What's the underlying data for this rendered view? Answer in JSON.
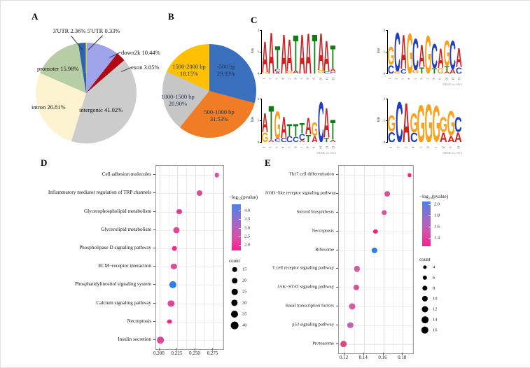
{
  "panel_labels": {
    "a": "A",
    "b": "B",
    "c": "C",
    "d": "D",
    "e": "E"
  },
  "chart_data": [
    {
      "panel": "A",
      "type": "pie",
      "title": "",
      "categories": [
        "3'UTR",
        "5'UTR",
        "down2k",
        "exon",
        "intergenic",
        "intron",
        "promoter"
      ],
      "values": [
        2.36,
        0.33,
        10.44,
        3.05,
        41.02,
        26.81,
        15.98
      ],
      "labels": [
        "3'UTR 2.36%",
        "5'UTR 0.33%",
        "down2k 10.44%",
        "exon 3.05%",
        "intergenic 41.02%",
        "intron 26.81%",
        "promoter 15.98%"
      ],
      "colors": [
        "#2e64ad",
        "#ffdf00",
        "#9fa3ea",
        "#b00712",
        "#cccccc",
        "#fdf3d0",
        "#b7cda5"
      ],
      "start_angle": -9
    },
    {
      "panel": "B",
      "type": "pie",
      "title": "",
      "categories": [
        "-500 bp",
        "500-1000 bp",
        "1000-1500 bp",
        "1500-2000 bp"
      ],
      "values": [
        29.03,
        31.53,
        20.9,
        18.15
      ],
      "pct_labels": [
        "29.03%",
        "31.53%",
        "20.90%",
        "18.15%"
      ],
      "colors": [
        "#3a6fbd",
        "#f07d26",
        "#c6c6c6",
        "#ffc004"
      ],
      "start_angle": 0
    },
    {
      "panel": "D",
      "type": "scatter",
      "title": "",
      "categories": [
        "Cell adhesion molecules",
        "Inflammatory mediator regulation of TRP channels",
        "Glycerophospholipid metabolism",
        "Glycerolipid metabolism",
        "Phospholipase D signaling pathway",
        "ECM−receptor interaction",
        "Phosphatidylinositol signaling system",
        "Calcium signaling pathway",
        "Necroptosis",
        "Insulin secretion"
      ],
      "x": [
        0.28,
        0.256,
        0.228,
        0.224,
        0.221,
        0.22,
        0.219,
        0.216,
        0.214,
        0.201
      ],
      "count": [
        15,
        22,
        22,
        28,
        16,
        24,
        36,
        30,
        16,
        32
      ],
      "neglog10_pvalue": [
        2.4,
        2.3,
        2.1,
        2.2,
        2.0,
        2.3,
        4.2,
        2.2,
        2.0,
        2.15
      ],
      "colors": [
        "#d4539f",
        "#dd4899",
        "#e83b92",
        "#dd4899",
        "#f32b8c",
        "#d8509d",
        "#2f7fe8",
        "#dd4899",
        "#f32b8c",
        "#dd459a"
      ],
      "xlim": [
        0.1952,
        0.2892
      ],
      "xticks": [
        0.2,
        0.225,
        0.25,
        0.275
      ],
      "xtick_labels": [
        "0.200",
        "0.225",
        "0.250",
        "0.275"
      ],
      "grid": true,
      "legend": {
        "color_title": "−log₁₀(pvalue)",
        "color_ticks": [
          "4.0",
          "3.5",
          "3.0",
          "2.5",
          "2.0"
        ],
        "count_title": "count",
        "count_sizes": [
          15,
          20,
          25,
          30,
          35,
          40
        ]
      }
    },
    {
      "panel": "E",
      "type": "scatter",
      "title": "",
      "categories": [
        "Th17 cell differentiation",
        "NOD−like receptor signaling pathway",
        "Steroid biosynthesis",
        "Necroptosis",
        "Ribosome",
        "T cell receptor signaling pathway",
        "JAK−STAT signaling pathway",
        "Basal transcription factors",
        "p53 signaling pathway",
        "Proteasome"
      ],
      "x": [
        0.187,
        0.164,
        0.161,
        0.152,
        0.151,
        0.133,
        0.132,
        0.128,
        0.126,
        0.119
      ],
      "count": [
        4,
        9,
        8,
        6,
        10,
        10,
        10,
        12,
        10,
        14
      ],
      "neglog10_pvalue": [
        1.4,
        1.55,
        1.55,
        1.4,
        2.0,
        1.6,
        1.55,
        1.58,
        1.65,
        1.45
      ],
      "colors": [
        "#f7207a",
        "#d9519e",
        "#d9519e",
        "#f52478",
        "#2f7fe8",
        "#cf5da7",
        "#dd4f9e",
        "#d55aa4",
        "#c362ae",
        "#e3447f"
      ],
      "xlim": [
        0.1142,
        0.1906
      ],
      "xticks": [
        0.12,
        0.14,
        0.16,
        0.18
      ],
      "xtick_labels": [
        "0.12",
        "0.14",
        "0.16",
        "0.18"
      ],
      "grid": true,
      "legend": {
        "color_title": "−log₁₀(pvalue)",
        "color_ticks": [
          "2.0",
          "1.8",
          "1.6",
          "1.4"
        ],
        "count_title": "count",
        "count_sizes": [
          4,
          6,
          8,
          10,
          12,
          14,
          16
        ]
      }
    }
  ],
  "motif_logos": {
    "ylabel": "bits",
    "yticks": [
      "2",
      "1",
      "0"
    ],
    "watermark": "MEME (no SSC)",
    "letter_colors": {
      "A": "#d11f1f",
      "T": "#0f7d12",
      "G": "#f9a11b",
      "C": "#1f3ec2"
    },
    "logos": [
      {
        "consensus": "AATAATAATAAT",
        "caption": "",
        "columns": [
          [
            [
              "A",
              1.45
            ],
            [
              "G",
              0.08
            ]
          ],
          [
            [
              "A",
              1.95
            ]
          ],
          [
            [
              "T",
              1.1
            ],
            [
              "C",
              0.12
            ],
            [
              "A",
              0.08
            ]
          ],
          [
            [
              "A",
              1.85
            ]
          ],
          [
            [
              "A",
              1.5
            ],
            [
              "G",
              0.1
            ]
          ],
          [
            [
              "T",
              1.7
            ],
            [
              "A",
              0.12
            ]
          ],
          [
            [
              "A",
              1.85
            ]
          ],
          [
            [
              "A",
              1.9
            ]
          ],
          [
            [
              "T",
              1.85
            ]
          ],
          [
            [
              "A",
              1.75
            ],
            [
              "G",
              0.15
            ]
          ],
          [
            [
              "A",
              1.45
            ],
            [
              "C",
              0.1
            ]
          ],
          [
            [
              "T",
              1.1
            ],
            [
              "A",
              0.15
            ],
            [
              "C",
              0.08
            ]
          ]
        ]
      },
      {
        "consensus": "GCAGCAGCAGCA",
        "caption": "MEME (no SSC)",
        "columns": [
          [
            [
              "G",
              0.85
            ],
            [
              "C",
              0.4
            ]
          ],
          [
            [
              "C",
              1.85
            ],
            [
              "G",
              0.1
            ]
          ],
          [
            [
              "A",
              1.6
            ],
            [
              "C",
              0.2
            ]
          ],
          [
            [
              "G",
              1.9
            ]
          ],
          [
            [
              "C",
              1.5
            ],
            [
              "G",
              0.15
            ]
          ],
          [
            [
              "A",
              1.05
            ],
            [
              "T",
              0.3
            ]
          ],
          [
            [
              "G",
              1.8
            ]
          ],
          [
            [
              "C",
              1.15
            ],
            [
              "T",
              0.25
            ]
          ],
          [
            [
              "A",
              0.95
            ],
            [
              "G",
              0.25
            ]
          ],
          [
            [
              "G",
              1.2
            ],
            [
              "T",
              0.25
            ],
            [
              "A",
              0.1
            ]
          ],
          [
            [
              "C",
              1.35
            ],
            [
              "A",
              0.2
            ]
          ],
          [
            [
              "A",
              0.9
            ],
            [
              "C",
              0.3
            ]
          ]
        ]
      },
      {
        "consensus": "ATGATTTAGCAT",
        "caption": "MEME (no SSC)",
        "columns": [
          [
            [
              "A",
              0.9
            ],
            [
              "G",
              0.45
            ]
          ],
          [
            [
              "T",
              1.6
            ],
            [
              "A",
              0.1
            ]
          ],
          [
            [
              "G",
              1.3
            ],
            [
              "C",
              0.15
            ]
          ],
          [
            [
              "A",
              1.0
            ],
            [
              "C",
              0.2
            ]
          ],
          [
            [
              "T",
              0.55
            ],
            [
              "C",
              0.3
            ]
          ],
          [
            [
              "T",
              0.6
            ],
            [
              "C",
              0.25
            ]
          ],
          [
            [
              "T",
              0.5
            ],
            [
              "C",
              0.3
            ],
            [
              "A",
              0.1
            ]
          ],
          [
            [
              "A",
              0.8
            ],
            [
              "T",
              0.35
            ]
          ],
          [
            [
              "G",
              0.65
            ],
            [
              "A",
              0.3
            ]
          ],
          [
            [
              "C",
              1.9
            ]
          ],
          [
            [
              "A",
              1.4
            ],
            [
              "T",
              0.2
            ]
          ],
          [
            [
              "T",
              0.95
            ],
            [
              "A",
              0.1
            ]
          ]
        ]
      },
      {
        "consensus": "GCAGGGGGGC",
        "caption": "MEME (no SSC)",
        "columns": [
          [
            [
              "G",
              0.75
            ],
            [
              "C",
              0.5
            ]
          ],
          [
            [
              "C",
              1.9
            ]
          ],
          [
            [
              "A",
              1.85
            ]
          ],
          [
            [
              "G",
              0.9
            ],
            [
              "C",
              0.45
            ]
          ],
          [
            [
              "G",
              1.75
            ]
          ],
          [
            [
              "G",
              1.8
            ]
          ],
          [
            [
              "G",
              1.7
            ]
          ],
          [
            [
              "G",
              0.7
            ],
            [
              "A",
              0.45
            ]
          ],
          [
            [
              "G",
              1.15
            ],
            [
              "A",
              0.3
            ]
          ],
          [
            [
              "C",
              0.7
            ],
            [
              "A",
              0.45
            ]
          ]
        ]
      }
    ]
  }
}
